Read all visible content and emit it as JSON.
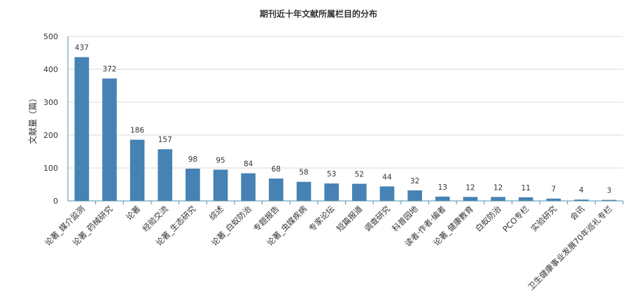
{
  "chart_data": {
    "type": "bar",
    "title": "期刊近十年文献所属栏目的分布",
    "xlabel": "",
    "ylabel": "文献量（篇）",
    "ylim": [
      0,
      500
    ],
    "yticks": [
      0,
      100,
      200,
      300,
      400,
      500
    ],
    "grid": true,
    "legend": "none",
    "bar_color": "#4682b4",
    "categories": [
      "论著_媒介监测",
      "论著_药械研究",
      "论著",
      "经验交流",
      "论著_生态研究",
      "综述",
      "论著_白蚁防治",
      "专题报告",
      "论著_虫媒疾病",
      "专家论坛",
      "短篇报道",
      "调查研究",
      "科普园地",
      "读者·作者·编者",
      "论著_健康教育",
      "白蚁防治",
      "PCO专栏",
      "实验研究",
      "会讯",
      "卫生健康事业发展70年巡礼专栏"
    ],
    "values": [
      437,
      372,
      186,
      157,
      98,
      95,
      84,
      68,
      58,
      53,
      52,
      44,
      32,
      13,
      12,
      12,
      11,
      7,
      4,
      3
    ]
  }
}
